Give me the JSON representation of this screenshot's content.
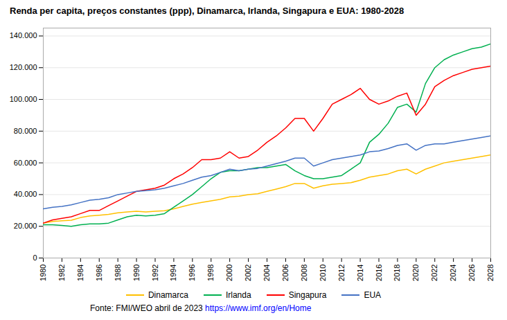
{
  "chart_data": {
    "type": "line",
    "title": "Renda per capita, preços constantes (ppp), Dinamarca, Irlanda, Singapura e EUA: 1980-2028",
    "x": [
      1980,
      1981,
      1982,
      1983,
      1984,
      1985,
      1986,
      1987,
      1988,
      1989,
      1990,
      1991,
      1992,
      1993,
      1994,
      1995,
      1996,
      1997,
      1998,
      1999,
      2000,
      2001,
      2002,
      2003,
      2004,
      2005,
      2006,
      2007,
      2008,
      2009,
      2010,
      2011,
      2012,
      2013,
      2014,
      2015,
      2016,
      2017,
      2018,
      2019,
      2020,
      2021,
      2022,
      2023,
      2024,
      2025,
      2026,
      2027,
      2028
    ],
    "series": [
      {
        "name": "Dinamarca",
        "color": "#FFC000",
        "values": [
          22000,
          23000,
          23500,
          23800,
          25500,
          26500,
          27000,
          27500,
          28500,
          29000,
          29500,
          29000,
          29500,
          29800,
          31000,
          32500,
          34000,
          35000,
          36000,
          37000,
          38500,
          39000,
          40000,
          40500,
          42000,
          43500,
          45000,
          47000,
          47000,
          44000,
          45500,
          46500,
          47000,
          47500,
          49000,
          51000,
          52000,
          53000,
          55000,
          56000,
          53000,
          56000,
          58000,
          60000,
          61000,
          62000,
          63000,
          64000,
          65000
        ]
      },
      {
        "name": "Irlanda",
        "color": "#00B050",
        "values": [
          21000,
          21000,
          20500,
          20000,
          21000,
          21500,
          21500,
          22000,
          24000,
          26000,
          27000,
          26500,
          27000,
          28000,
          32000,
          36000,
          40000,
          45000,
          50000,
          54000,
          55000,
          55000,
          56000,
          57000,
          57000,
          58000,
          59000,
          55000,
          52000,
          50000,
          50000,
          51000,
          52000,
          56000,
          60000,
          73000,
          78000,
          85000,
          95000,
          97000,
          92000,
          110000,
          120000,
          125000,
          128000,
          130000,
          132000,
          133000,
          135000
        ]
      },
      {
        "name": "Singapura",
        "color": "#FF0000",
        "values": [
          22000,
          24000,
          25000,
          26000,
          28000,
          30000,
          30000,
          33000,
          36000,
          39000,
          42000,
          43000,
          44000,
          46000,
          50000,
          53000,
          57000,
          62000,
          62000,
          63000,
          67000,
          63000,
          64000,
          68000,
          73000,
          77000,
          82000,
          88000,
          88000,
          80000,
          88000,
          97000,
          100000,
          103000,
          107000,
          100000,
          97000,
          99000,
          102000,
          104000,
          90000,
          97000,
          108000,
          112000,
          115000,
          117000,
          119000,
          120000,
          121000
        ]
      },
      {
        "name": "EUA",
        "color": "#4472C4",
        "values": [
          31000,
          32000,
          32500,
          33500,
          35000,
          36500,
          37000,
          38000,
          40000,
          41000,
          42000,
          42500,
          43000,
          44000,
          45500,
          47000,
          49000,
          51000,
          52000,
          54000,
          56000,
          55000,
          56000,
          56500,
          58000,
          59500,
          61000,
          63000,
          63000,
          58000,
          60000,
          62000,
          63000,
          64000,
          65000,
          67000,
          67500,
          69000,
          71000,
          72000,
          68000,
          71000,
          72000,
          72000,
          73000,
          74000,
          75000,
          76000,
          77000
        ]
      }
    ],
    "xlim": [
      1980,
      2028
    ],
    "xticks": [
      1980,
      1982,
      1984,
      1986,
      1988,
      1990,
      1992,
      1994,
      1996,
      1998,
      2000,
      2002,
      2004,
      2006,
      2008,
      2010,
      2012,
      2014,
      2016,
      2018,
      2020,
      2022,
      2024,
      2026,
      2028
    ],
    "ylim": [
      0,
      145000
    ],
    "yticks": [
      0,
      {
        "value": 20000,
        "label": "20.000"
      },
      {
        "value": 40000,
        "label": "40.000"
      },
      {
        "value": 60000,
        "label": "60.000"
      },
      {
        "value": 80000,
        "label": "80.000"
      },
      {
        "value": 100000,
        "label": "100.000"
      },
      {
        "value": 120000,
        "label": "120.000"
      },
      {
        "value": 140000,
        "label": "140.000"
      }
    ],
    "grid": "y",
    "legend": "bottom",
    "annotations": [
      "Fonte: FMI/WEO abril de 2023 ",
      "https://www.imf.org/en/Home"
    ]
  }
}
